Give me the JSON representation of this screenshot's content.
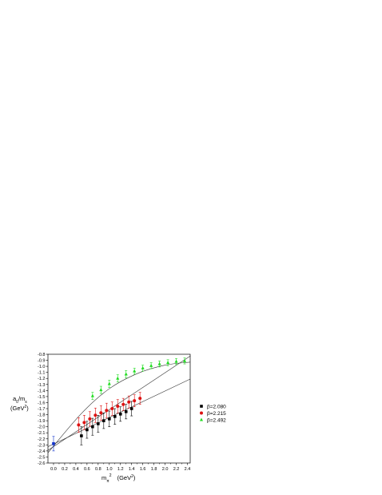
{
  "chart_data": {
    "type": "scatter",
    "title": "",
    "ylabel": {
      "line1_main": "a",
      "line1_sub": "0",
      "line1_slash": "/m",
      "line1_sub2": "s",
      "line2": "(GeV",
      "line2_sup": "2",
      "line2_end": ")"
    },
    "xlabel": {
      "main": "m",
      "sub": "π",
      "sup": "2",
      "units": "(GeV",
      "units_sup": "2",
      "units_end": ")"
    },
    "xlim": [
      -0.1,
      2.45
    ],
    "ylim": [
      -2.6,
      -0.8
    ],
    "xticks": [
      "0.0",
      "0.2",
      "0.4",
      "0.6",
      "0.8",
      "1.0",
      "1.2",
      "1.4",
      "1.6",
      "1.8",
      "2.0",
      "2.2",
      "2.4"
    ],
    "yticks": [
      "-0.8",
      "-0.9",
      "-1.0",
      "-1.1",
      "-1.2",
      "-1.3",
      "-1.4",
      "-1.5",
      "-1.6",
      "-1.7",
      "-1.8",
      "-1.9",
      "-2.0",
      "-2.1",
      "-2.2",
      "-2.3",
      "-2.4",
      "-2.5",
      "-2.6"
    ],
    "grid": false,
    "legend_position": "right",
    "series": [
      {
        "name": "β=2.080",
        "marker": "square",
        "color": "#000000",
        "x": [
          0.5,
          0.6,
          0.7,
          0.8,
          0.9,
          1.0,
          1.1,
          1.2,
          1.3,
          1.4
        ],
        "y": [
          -2.15,
          -2.05,
          -2.0,
          -1.95,
          -1.9,
          -1.87,
          -1.83,
          -1.79,
          -1.75,
          -1.7
        ],
        "err": [
          0.15,
          0.14,
          0.14,
          0.14,
          0.13,
          0.13,
          0.13,
          0.12,
          0.12,
          0.12
        ]
      },
      {
        "name": "β=2.215",
        "marker": "circle",
        "color": "#dd1111",
        "x": [
          0.45,
          0.55,
          0.65,
          0.75,
          0.85,
          0.95,
          1.05,
          1.15,
          1.25,
          1.35,
          1.45,
          1.55
        ],
        "y": [
          -1.97,
          -1.93,
          -1.87,
          -1.81,
          -1.77,
          -1.73,
          -1.7,
          -1.66,
          -1.63,
          -1.59,
          -1.57,
          -1.53
        ],
        "err": [
          0.12,
          0.12,
          0.12,
          0.12,
          0.12,
          0.12,
          0.11,
          0.11,
          0.1,
          0.1,
          0.1,
          0.1
        ]
      },
      {
        "name": "β=2.492",
        "marker": "triangle",
        "color": "#22dd22",
        "x": [
          0.7,
          0.85,
          1.0,
          1.15,
          1.3,
          1.45,
          1.6,
          1.75,
          1.9,
          2.05,
          2.2,
          2.35
        ],
        "y": [
          -1.49,
          -1.39,
          -1.29,
          -1.2,
          -1.13,
          -1.08,
          -1.03,
          -0.99,
          -0.96,
          -0.94,
          -0.92,
          -0.91
        ],
        "err": [
          0.06,
          0.06,
          0.06,
          0.06,
          0.06,
          0.05,
          0.05,
          0.05,
          0.05,
          0.05,
          0.05,
          0.05
        ]
      },
      {
        "name": "",
        "marker": "square",
        "color": "#1133cc",
        "x": [
          0.0
        ],
        "y": [
          -2.28
        ],
        "err": [
          0.12
        ]
      }
    ],
    "fits": [
      {
        "x": [
          -0.1,
          2.45
        ],
        "y": [
          -2.33,
          -1.21
        ]
      },
      {
        "x": [
          -0.1,
          2.45
        ],
        "y": [
          -2.39,
          -0.83
        ]
      },
      {
        "x": [
          -0.1,
          0.5,
          1.0,
          1.5,
          2.0,
          2.45
        ],
        "y": [
          -2.43,
          -1.78,
          -1.37,
          -1.12,
          -0.98,
          -0.93
        ]
      }
    ],
    "fit_color": "#333333"
  }
}
